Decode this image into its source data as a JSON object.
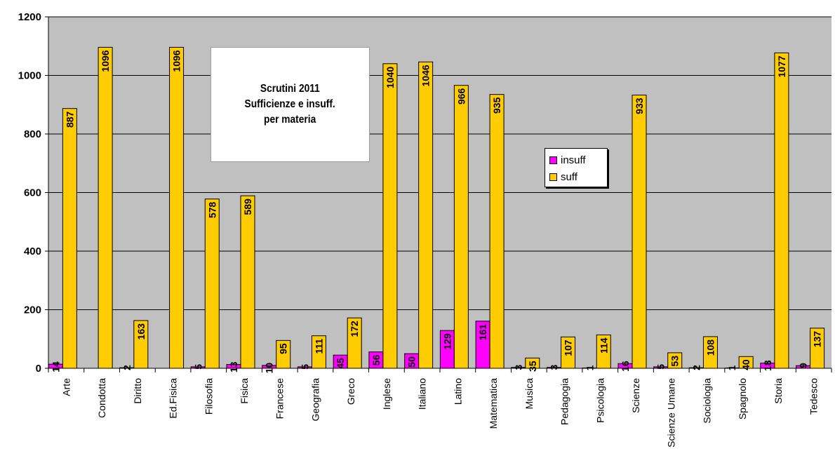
{
  "chart_data": {
    "type": "bar",
    "title_lines": [
      "Scrutini 2011",
      "Sufficienze e insuff.",
      "per materia"
    ],
    "categories": [
      "Arte",
      "Condotta",
      "Diritto",
      "Ed.Fisica",
      "Filosofia",
      "Fisica",
      "Francese",
      "Geografia",
      "Greco",
      "Inglese",
      "Italiano",
      "Latino",
      "Matematica",
      "Musica",
      "Pedagogia",
      "Psicologia",
      "Scienze",
      "Scienze Umane",
      "Sociologia",
      "Spagnolo",
      "Storia",
      "Tedesco"
    ],
    "series": [
      {
        "name": "insuff",
        "color": "#ff00ff",
        "values": [
          14,
          null,
          2,
          null,
          5,
          13,
          10,
          5,
          45,
          56,
          50,
          129,
          161,
          3,
          3,
          1,
          16,
          5,
          2,
          1,
          18,
          9
        ],
        "labels": [
          "14",
          "",
          "2",
          "",
          "5",
          "13",
          "10",
          "5",
          "45",
          "56",
          "50",
          "129",
          "161",
          "3",
          "3",
          "1",
          "16",
          "5",
          "2",
          "1",
          "18",
          "9"
        ]
      },
      {
        "name": "suff",
        "color": "#ffcc00",
        "values": [
          887,
          1096,
          163,
          1096,
          578,
          589,
          95,
          111,
          172,
          1040,
          1046,
          966,
          935,
          35,
          107,
          114,
          933,
          53,
          108,
          40,
          1077,
          137
        ],
        "labels": [
          "887",
          "1096",
          "163",
          "1096",
          "578",
          "589",
          "95",
          "111",
          "172",
          "1040",
          "1046",
          "966",
          "935",
          "35",
          "107",
          "114",
          "933",
          "53",
          "108",
          "40",
          "1077",
          "137"
        ]
      }
    ],
    "ylim": [
      0,
      1200
    ],
    "yticks": [
      "0",
      "200",
      "400",
      "600",
      "800",
      "1000",
      "1200"
    ],
    "grid": true,
    "legend_position": "right-middle",
    "colors": {
      "plot_background": "#c0c0c0",
      "gridline": "#000000"
    }
  }
}
